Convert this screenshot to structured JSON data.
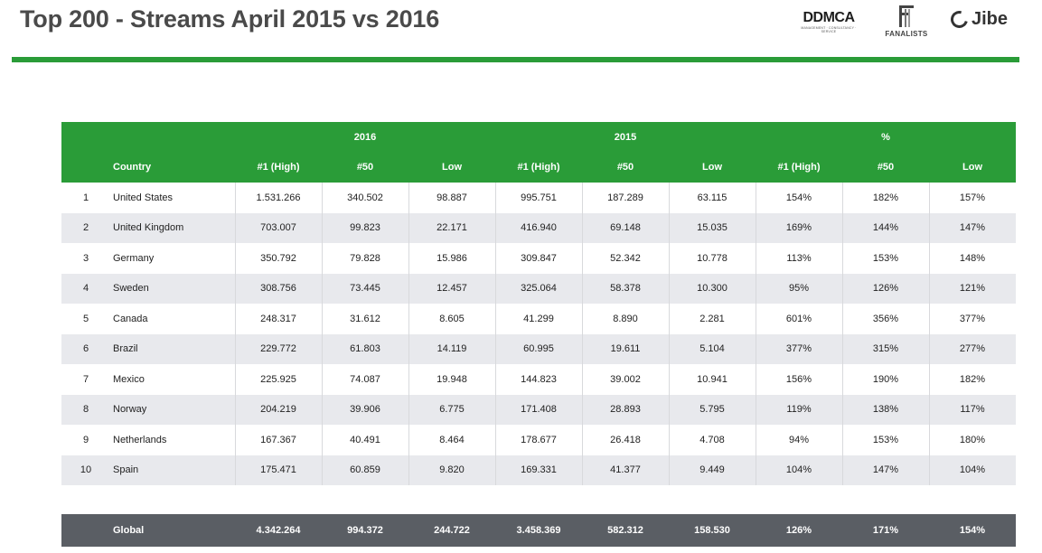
{
  "title": "Top 200 - Streams April 2015 vs 2016",
  "logos": {
    "ddmca": "DDMCA",
    "ddmca_sub": "MANAGEMENT · CONSULTANCY · SERVICE",
    "fanalists": "FANALISTS",
    "jibe": "Jibe"
  },
  "table": {
    "group_headers": [
      "2016",
      "2015",
      "%"
    ],
    "columns": [
      "Country",
      "#1 (High)",
      "#50",
      "Low",
      "#1 (High)",
      "#50",
      "Low",
      "#1 (High)",
      "#50",
      "Low"
    ],
    "rows": [
      [
        "1",
        "United States",
        "1.531.266",
        "340.502",
        "98.887",
        "995.751",
        "187.289",
        "63.115",
        "154%",
        "182%",
        "157%"
      ],
      [
        "2",
        "United Kingdom",
        "703.007",
        "99.823",
        "22.171",
        "416.940",
        "69.148",
        "15.035",
        "169%",
        "144%",
        "147%"
      ],
      [
        "3",
        "Germany",
        "350.792",
        "79.828",
        "15.986",
        "309.847",
        "52.342",
        "10.778",
        "113%",
        "153%",
        "148%"
      ],
      [
        "4",
        "Sweden",
        "308.756",
        "73.445",
        "12.457",
        "325.064",
        "58.378",
        "10.300",
        "95%",
        "126%",
        "121%"
      ],
      [
        "5",
        "Canada",
        "248.317",
        "31.612",
        "8.605",
        "41.299",
        "8.890",
        "2.281",
        "601%",
        "356%",
        "377%"
      ],
      [
        "6",
        "Brazil",
        "229.772",
        "61.803",
        "14.119",
        "60.995",
        "19.611",
        "5.104",
        "377%",
        "315%",
        "277%"
      ],
      [
        "7",
        "Mexico",
        "225.925",
        "74.087",
        "19.948",
        "144.823",
        "39.002",
        "10.941",
        "156%",
        "190%",
        "182%"
      ],
      [
        "8",
        "Norway",
        "204.219",
        "39.906",
        "6.775",
        "171.408",
        "28.893",
        "5.795",
        "119%",
        "138%",
        "117%"
      ],
      [
        "9",
        "Netherlands",
        "167.367",
        "40.491",
        "8.464",
        "178.677",
        "26.418",
        "4.708",
        "94%",
        "153%",
        "180%"
      ],
      [
        "10",
        "Spain",
        "175.471",
        "60.859",
        "9.820",
        "169.331",
        "41.377",
        "9.449",
        "104%",
        "147%",
        "104%"
      ]
    ],
    "global": [
      "Global",
      "4.342.264",
      "994.372",
      "244.722",
      "3.458.369",
      "582.312",
      "158.530",
      "126%",
      "171%",
      "154%"
    ]
  }
}
